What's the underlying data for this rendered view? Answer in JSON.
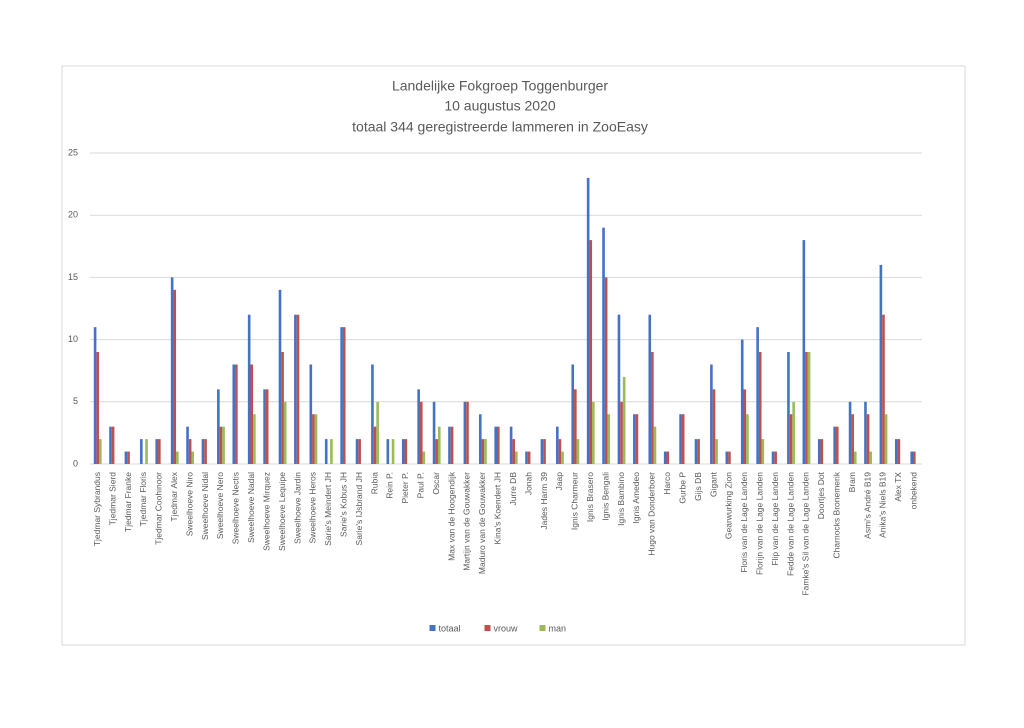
{
  "chart_data": {
    "type": "bar",
    "title": [
      "Landelijke Fokgroep Toggenburger",
      "10 augustus 2020",
      "totaal 344 geregistreerde lammeren in ZooEasy"
    ],
    "categories": [
      "Tjedmar Sybrandus",
      "Tjedmar Sierd",
      "Tjedmar Franke",
      "Tjedmar Floris",
      "Tjedmar Coohinoor",
      "Tjedmar Alex",
      "Sweelhoeve Niro",
      "Sweelhoeve Nidal",
      "Sweelhoeve Nero",
      "Sweelhoeve Nectis",
      "Sweelhoeve Nadal",
      "Sweelhoeve Mirquez",
      "Sweelhoeve Lequipe",
      "Sweelhoeve Jardin",
      "Sweelhoeve Heros",
      "Sarie's Meindert JH",
      "Sarie's Kobus JH",
      "Sarie's IJsbrand JH",
      "Rubia",
      "Rein P.",
      "Pieter P.",
      "Paul P.",
      "Oscar",
      "Max van de Hoogendijk",
      "Martijn van de Gouwakker",
      "Maduro van de Gouwakker",
      "Kina's Koendert JH",
      "Jurre DB",
      "Jonah",
      "Jades Harm 39",
      "Jaap",
      "Ignis Charmeur",
      "Ignis Brasero",
      "Ignis Bengali",
      "Ignis Bambino",
      "Ignis Amedeo",
      "Hugo van Donderboer",
      "Harco",
      "Gurbe P",
      "Gijs DB",
      "Gigant",
      "Gearwurking Zion",
      "Floris van de Lage Landen",
      "Florijn van de Lage Landen",
      "Flip van de Lage Landen",
      "Fedde van de Lage Landen",
      "Famke's Sil van de Lage Landen",
      "Doortjes Dot",
      "Charnocks Bronemerik",
      "Bram",
      "Asmi's André B19",
      "Anika's Niels B19",
      "Alex TX",
      "onbekend"
    ],
    "series": [
      {
        "name": "totaal",
        "color": "#4472c4",
        "values": [
          11,
          3,
          1,
          2,
          2,
          15,
          3,
          2,
          6,
          8,
          12,
          6,
          14,
          12,
          8,
          2,
          11,
          2,
          8,
          2,
          2,
          6,
          5,
          3,
          5,
          4,
          3,
          3,
          1,
          2,
          3,
          8,
          23,
          19,
          12,
          4,
          12,
          1,
          4,
          2,
          8,
          1,
          10,
          11,
          1,
          9,
          18,
          2,
          3,
          5,
          5,
          16,
          2,
          1
        ]
      },
      {
        "name": "vrouw",
        "color": "#c0504d",
        "values": [
          9,
          3,
          1,
          0,
          2,
          14,
          2,
          2,
          3,
          8,
          8,
          6,
          9,
          12,
          4,
          0,
          11,
          2,
          3,
          0,
          2,
          5,
          2,
          3,
          5,
          2,
          3,
          2,
          1,
          2,
          2,
          6,
          18,
          15,
          5,
          4,
          9,
          1,
          4,
          2,
          6,
          1,
          6,
          9,
          1,
          4,
          9,
          2,
          3,
          4,
          4,
          12,
          2,
          1
        ]
      },
      {
        "name": "man",
        "color": "#9bbb59",
        "values": [
          2,
          0,
          0,
          2,
          0,
          1,
          1,
          0,
          3,
          0,
          4,
          0,
          5,
          0,
          4,
          2,
          0,
          0,
          5,
          2,
          0,
          1,
          3,
          0,
          0,
          2,
          0,
          1,
          0,
          0,
          1,
          2,
          5,
          4,
          7,
          0,
          3,
          0,
          0,
          0,
          2,
          0,
          4,
          2,
          0,
          5,
          9,
          0,
          0,
          1,
          1,
          4,
          0,
          0
        ]
      }
    ],
    "ylim": [
      0,
      25
    ],
    "yticks": [
      0,
      5,
      10,
      15,
      20,
      25
    ],
    "grid": true,
    "legend": "bottom"
  }
}
